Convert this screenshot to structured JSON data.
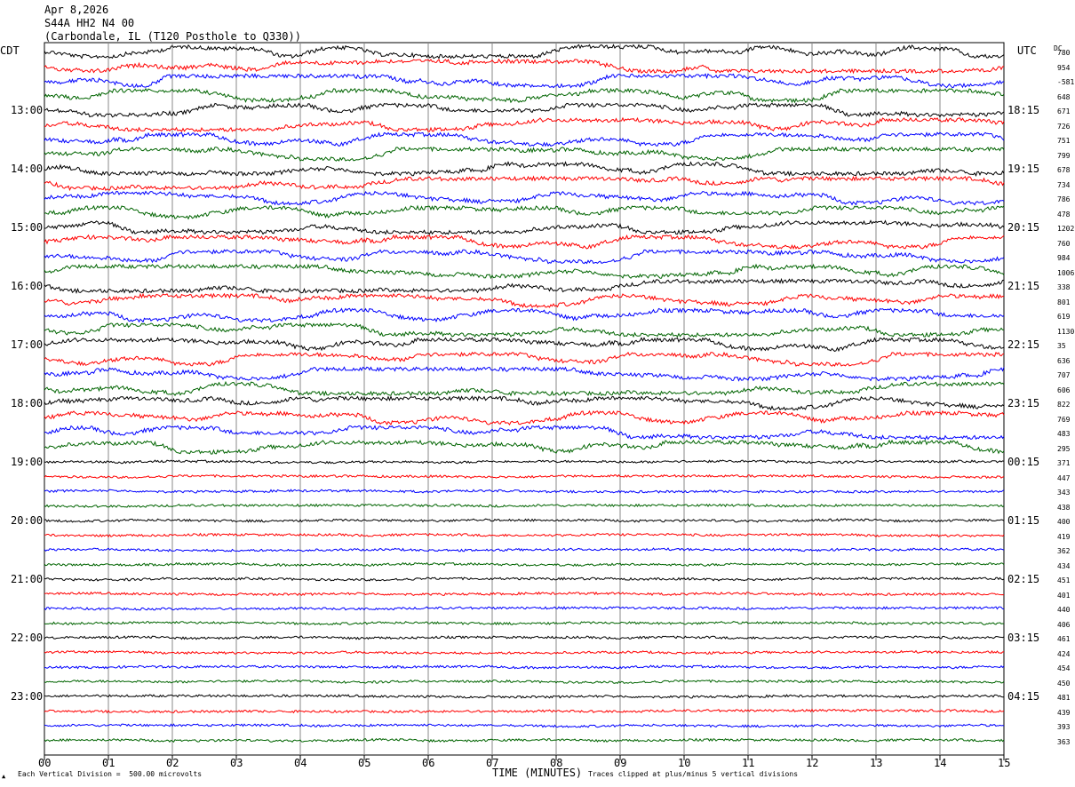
{
  "header": {
    "date": "Apr 8,2026",
    "station": "S44A HH2 N4 00",
    "location": "(Carbondale, IL (T120 Posthole to Q330))"
  },
  "left_tz": "CDT",
  "right_tz": "UTC",
  "dc_label": "DC",
  "footer": {
    "scale": "Each Vertical Division =  500.00 microvolts",
    "axis_title": "TIME (MINUTES)",
    "clip_note": "Traces clipped at plus/minus 5 vertical divisions"
  },
  "chart_data": {
    "type": "line",
    "title": "",
    "xlabel": "TIME (MINUTES)",
    "x_range": [
      0,
      15
    ],
    "x_ticks": [
      "00",
      "01",
      "02",
      "03",
      "04",
      "05",
      "06",
      "07",
      "08",
      "09",
      "10",
      "11",
      "12",
      "13",
      "14",
      "15"
    ],
    "left_hour_labels": [
      "13:00",
      "14:00",
      "15:00",
      "16:00",
      "17:00",
      "18:00",
      "19:00",
      "20:00",
      "21:00",
      "22:00",
      "23:00"
    ],
    "right_hour_labels": [
      "18:15",
      "19:15",
      "20:15",
      "21:15",
      "22:15",
      "23:15",
      "00:15",
      "01:15",
      "02:15",
      "03:15",
      "04:15"
    ],
    "trace_colors": [
      "#000000",
      "#ff0000",
      "#0000ff",
      "#006400"
    ],
    "dc_offsets": [
      "780",
      "954",
      "-581",
      "648",
      "671",
      "726",
      "751",
      "799",
      "678",
      "734",
      "786",
      "478",
      "1202",
      "760",
      "984",
      "1006",
      "338",
      "801",
      "619",
      "1130",
      "35",
      "636",
      "707",
      "606",
      "822",
      "769",
      "483",
      "295",
      "371",
      "447",
      "343",
      "438",
      "400",
      "419",
      "362",
      "434",
      "451",
      "401",
      "440",
      "406",
      "461",
      "424",
      "454",
      "450",
      "481",
      "439",
      "393",
      "363"
    ],
    "trace_count": 48,
    "traces_per_hour": 4,
    "first_labeled_trace_index": 4
  }
}
